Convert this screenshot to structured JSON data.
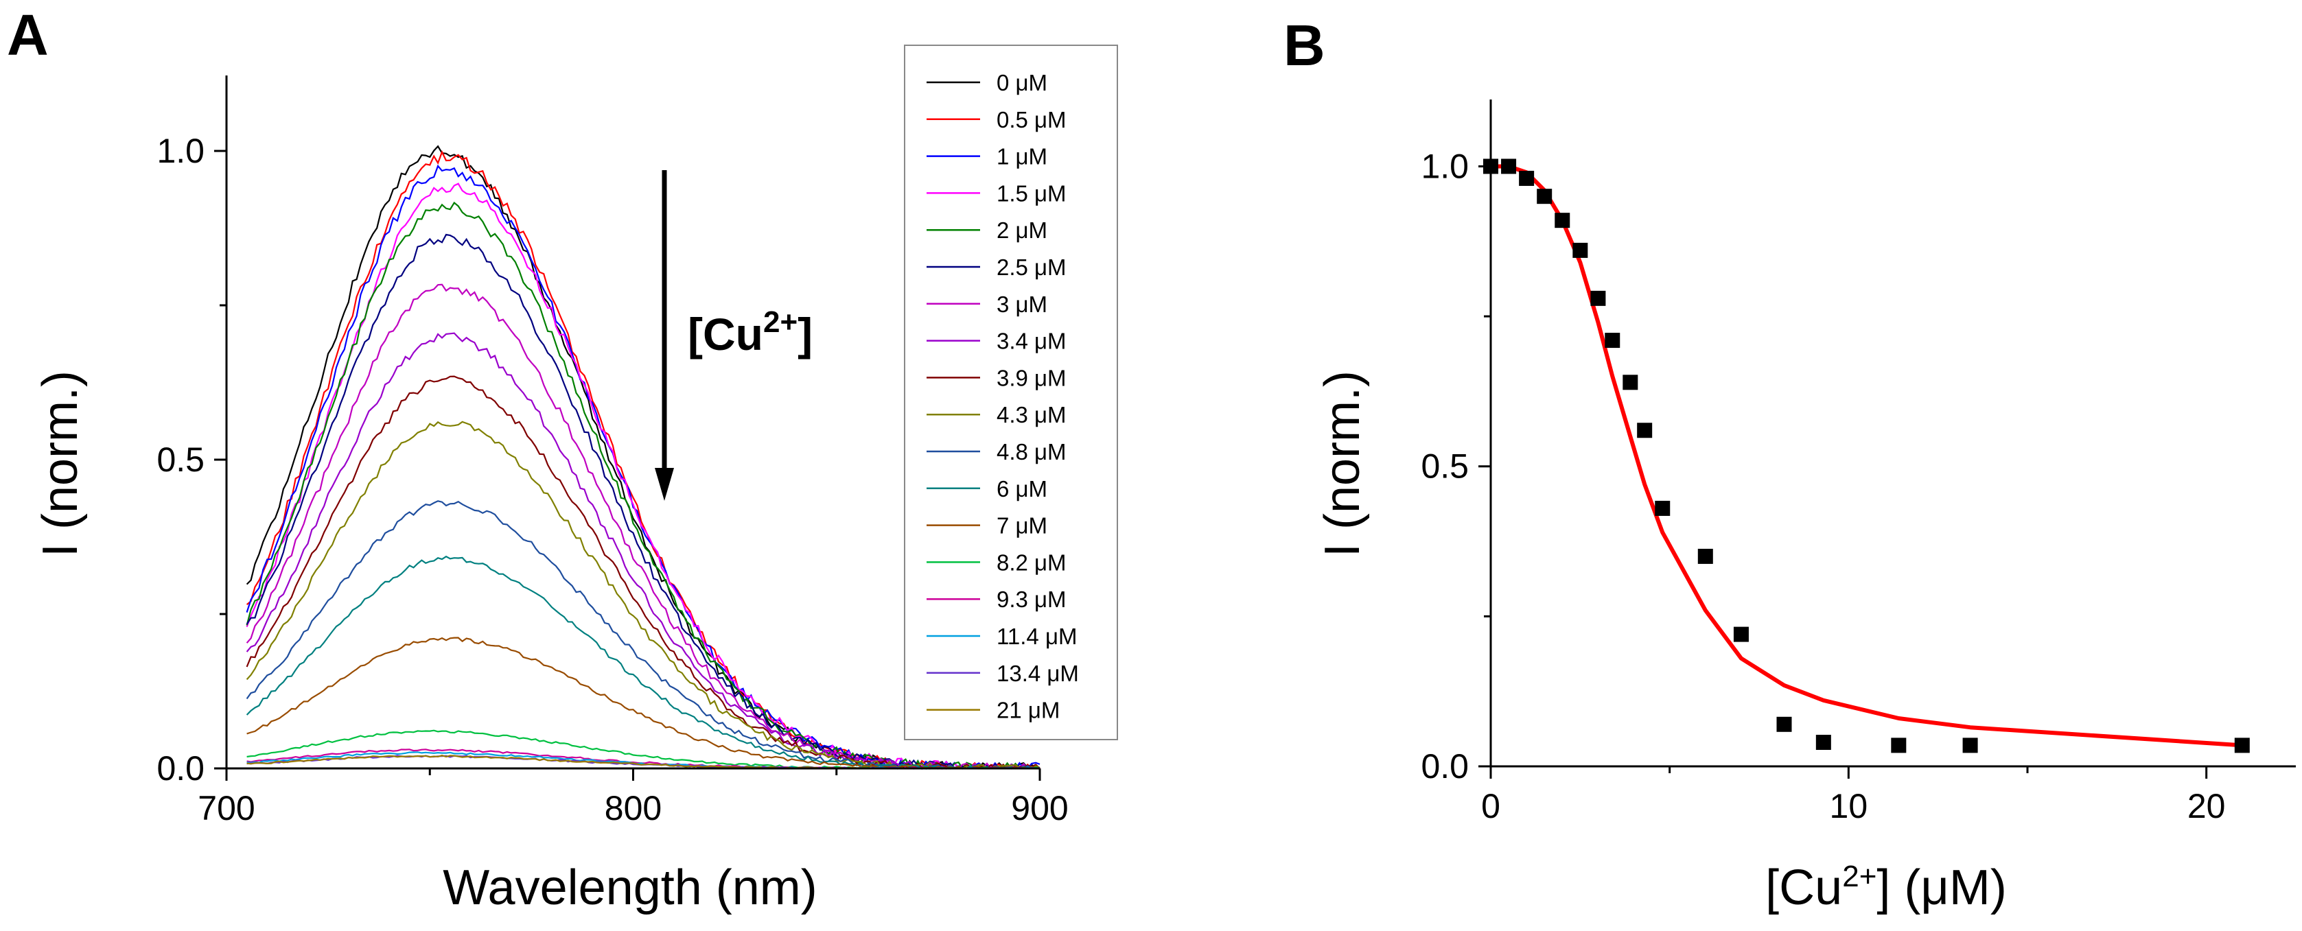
{
  "chart_data": [
    {
      "type": "line",
      "panel": "A",
      "xlabel": "Wavelength (nm)",
      "ylabel": "I (norm.)",
      "xlim": [
        700,
        900
      ],
      "ylim": [
        0,
        1.1
      ],
      "xticks": [
        "700",
        "800",
        "900"
      ],
      "yticks": [
        "0.0",
        "0.5",
        "1.0"
      ],
      "legend_position": "top-right",
      "annotation": "[Cu2+]",
      "annotation_arrow": "down",
      "series": [
        {
          "name": "0 μM",
          "color": "#000000",
          "peak_wavelength": 752,
          "peak": 1.0
        },
        {
          "name": "0.5 μM",
          "color": "#ff0000",
          "peak_wavelength": 754,
          "peak": 0.99
        },
        {
          "name": "1 μM",
          "color": "#0000ff",
          "peak_wavelength": 754,
          "peak": 0.97
        },
        {
          "name": "1.5 μM",
          "color": "#ff00ff",
          "peak_wavelength": 755,
          "peak": 0.94
        },
        {
          "name": "2 μM",
          "color": "#008000",
          "peak_wavelength": 754,
          "peak": 0.91
        },
        {
          "name": "2.5 μM",
          "color": "#000080",
          "peak_wavelength": 754,
          "peak": 0.86
        },
        {
          "name": "3 μM",
          "color": "#c000c0",
          "peak_wavelength": 754,
          "peak": 0.78
        },
        {
          "name": "3.4 μM",
          "color": "#9900cc",
          "peak_wavelength": 754,
          "peak": 0.7
        },
        {
          "name": "3.9 μM",
          "color": "#800000",
          "peak_wavelength": 754,
          "peak": 0.63
        },
        {
          "name": "4.3 μM",
          "color": "#808000",
          "peak_wavelength": 754,
          "peak": 0.56
        },
        {
          "name": "4.8 μM",
          "color": "#1f4e9e",
          "peak_wavelength": 754,
          "peak": 0.43
        },
        {
          "name": "6 μM",
          "color": "#008080",
          "peak_wavelength": 754,
          "peak": 0.34
        },
        {
          "name": "7 μM",
          "color": "#994c00",
          "peak_wavelength": 754,
          "peak": 0.21
        },
        {
          "name": "8.2 μM",
          "color": "#00c040",
          "peak_wavelength": 750,
          "peak": 0.06
        },
        {
          "name": "9.3 μM",
          "color": "#cc0099",
          "peak_wavelength": 748,
          "peak": 0.03
        },
        {
          "name": "11.4 μM",
          "color": "#00a0e0",
          "peak_wavelength": 748,
          "peak": 0.025
        },
        {
          "name": "13.4 μM",
          "color": "#6633cc",
          "peak_wavelength": 748,
          "peak": 0.02
        },
        {
          "name": "21 μM",
          "color": "#997a00",
          "peak_wavelength": 748,
          "peak": 0.02
        }
      ]
    },
    {
      "type": "scatter",
      "panel": "B",
      "xlabel": "[Cu2+] (μM)",
      "ylabel": "I (norm.)",
      "xlim": [
        0,
        22.5
      ],
      "ylim": [
        0,
        1.1
      ],
      "xticks": [
        "0",
        "10",
        "20"
      ],
      "yticks": [
        "0.0",
        "0.5",
        "1.0"
      ],
      "points": {
        "x": [
          0,
          0.5,
          1,
          1.5,
          2,
          2.5,
          3,
          3.4,
          3.9,
          4.3,
          4.8,
          6,
          7,
          8.2,
          9.3,
          11.4,
          13.4,
          21
        ],
        "y": [
          1.0,
          1.0,
          0.98,
          0.95,
          0.91,
          0.86,
          0.78,
          0.71,
          0.64,
          0.56,
          0.43,
          0.35,
          0.22,
          0.07,
          0.04,
          0.035,
          0.035,
          0.035
        ],
        "color": "#000000"
      },
      "fit": {
        "x": [
          0,
          0.5,
          1,
          1.5,
          2,
          2.5,
          3,
          3.4,
          3.9,
          4.3,
          4.8,
          6,
          7,
          8.2,
          9.3,
          11.4,
          13.4,
          21
        ],
        "y": [
          1.0,
          1.0,
          0.99,
          0.96,
          0.91,
          0.84,
          0.74,
          0.65,
          0.55,
          0.47,
          0.39,
          0.26,
          0.18,
          0.135,
          0.11,
          0.08,
          0.065,
          0.035
        ],
        "color": "#ff0000"
      }
    }
  ]
}
